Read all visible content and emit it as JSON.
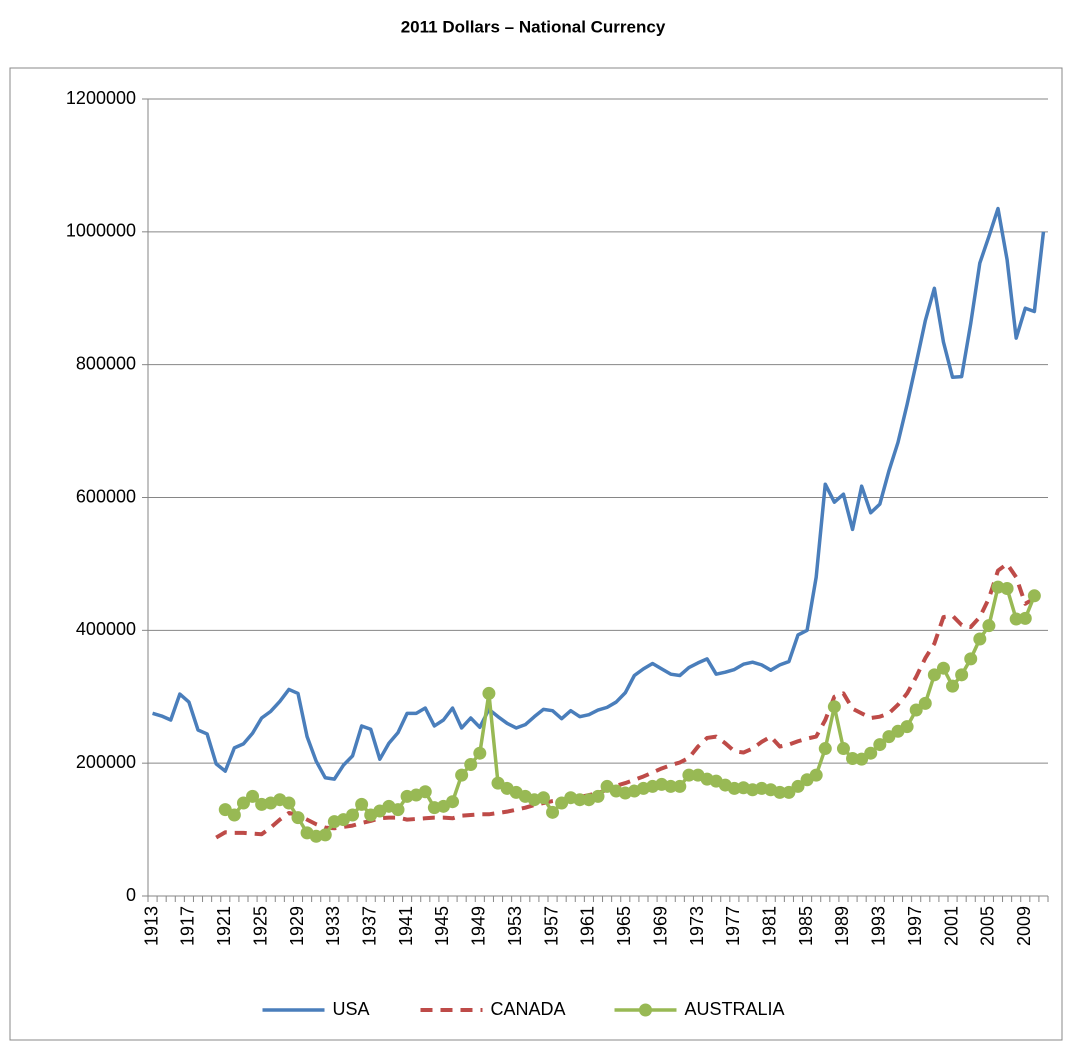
{
  "chart_data": {
    "type": "line",
    "title": "2011 Dollars – National Currency",
    "categories": [
      "1913",
      null,
      null,
      null,
      "1917",
      null,
      null,
      null,
      "1921",
      null,
      null,
      null,
      "1925",
      null,
      null,
      null,
      "1929",
      null,
      null,
      null,
      "1933",
      null,
      null,
      null,
      "1937",
      null,
      null,
      null,
      "1941",
      null,
      null,
      null,
      "1945",
      null,
      null,
      null,
      "1949",
      null,
      null,
      null,
      "1953",
      null,
      null,
      null,
      "1957",
      null,
      null,
      null,
      "1961",
      null,
      null,
      null,
      "1965",
      null,
      null,
      null,
      "1969",
      null,
      null,
      null,
      "1973",
      null,
      null,
      null,
      "1977",
      null,
      null,
      null,
      "1981",
      null,
      null,
      null,
      "1985",
      null,
      null,
      null,
      "1989",
      null,
      null,
      null,
      "1993",
      null,
      null,
      null,
      "1997",
      null,
      null,
      null,
      "2001",
      null,
      null,
      null,
      "2005",
      null,
      null,
      null,
      "2009",
      null,
      null
    ],
    "series": [
      {
        "name": "USA",
        "color": "#4a7ebb",
        "dash": false,
        "marker": false,
        "values": [
          275000,
          271000,
          265000,
          304000,
          292000,
          250000,
          244000,
          199000,
          188000,
          223000,
          229000,
          245000,
          268000,
          278000,
          293000,
          311000,
          305000,
          240000,
          203000,
          178000,
          176000,
          197000,
          211000,
          256000,
          251000,
          206000,
          230000,
          246000,
          275000,
          275000,
          283000,
          256000,
          265000,
          283000,
          253000,
          268000,
          254000,
          281000,
          270000,
          260000,
          253000,
          258000,
          270000,
          281000,
          279000,
          267000,
          279000,
          270000,
          273000,
          280000,
          284000,
          292000,
          306000,
          332000,
          342000,
          350000,
          342000,
          334000,
          332000,
          344000,
          351000,
          357000,
          334000,
          337000,
          341000,
          349000,
          352000,
          348000,
          340000,
          348000,
          353000,
          393000,
          400000,
          480000,
          620000,
          593000,
          605000,
          552000,
          617000,
          577000,
          590000,
          640000,
          683000,
          740000,
          802000,
          866000,
          915000,
          834000,
          781000,
          782000,
          862000,
          953000,
          993000,
          1035000,
          958000,
          840000,
          885000,
          880000,
          1000000
        ]
      },
      {
        "name": "CANADA",
        "color": "#be4b48",
        "dash": true,
        "marker": false,
        "values": [
          null,
          null,
          null,
          null,
          null,
          null,
          null,
          88000,
          96000,
          95000,
          95000,
          94000,
          93000,
          103000,
          115000,
          125000,
          122000,
          115000,
          108000,
          103000,
          102000,
          104000,
          106000,
          110000,
          113000,
          117000,
          118000,
          118000,
          115000,
          116000,
          117000,
          118000,
          118000,
          117000,
          121000,
          122000,
          123000,
          123000,
          125000,
          127000,
          130000,
          133000,
          137000,
          140000,
          143000,
          145000,
          147000,
          149000,
          152000,
          155000,
          160000,
          166000,
          170000,
          175000,
          180000,
          186000,
          192000,
          197000,
          201000,
          208000,
          225000,
          238000,
          240000,
          230000,
          218000,
          216000,
          222000,
          232000,
          240000,
          225000,
          228000,
          233000,
          237000,
          240000,
          265000,
          300000,
          305000,
          282000,
          275000,
          268000,
          270000,
          275000,
          288000,
          305000,
          330000,
          358000,
          380000,
          420000,
          422000,
          408000,
          405000,
          420000,
          448000,
          490000,
          500000,
          480000,
          440000,
          448000,
          null
        ]
      },
      {
        "name": "AUSTRALIA",
        "color": "#98b954",
        "dash": false,
        "marker": true,
        "values": [
          null,
          null,
          null,
          null,
          null,
          null,
          null,
          null,
          130000,
          122000,
          140000,
          150000,
          138000,
          140000,
          145000,
          140000,
          118000,
          95000,
          90000,
          92000,
          112000,
          115000,
          122000,
          138000,
          122000,
          128000,
          135000,
          130000,
          150000,
          152000,
          157000,
          133000,
          135000,
          142000,
          182000,
          198000,
          215000,
          305000,
          170000,
          162000,
          156000,
          150000,
          145000,
          148000,
          126000,
          140000,
          148000,
          145000,
          145000,
          150000,
          165000,
          158000,
          155000,
          158000,
          162000,
          165000,
          168000,
          165000,
          165000,
          182000,
          182000,
          176000,
          173000,
          167000,
          162000,
          163000,
          160000,
          162000,
          160000,
          156000,
          156000,
          165000,
          175000,
          182000,
          222000,
          285000,
          222000,
          207000,
          206000,
          215000,
          228000,
          240000,
          248000,
          255000,
          280000,
          290000,
          333000,
          343000,
          316000,
          333000,
          357000,
          387000,
          407000,
          465000,
          463000,
          417000,
          418000,
          452000,
          null
        ]
      }
    ],
    "ylim": [
      0,
      1200000
    ],
    "yticks": [
      0,
      200000,
      400000,
      600000,
      800000,
      1000000,
      1200000
    ],
    "grid": true,
    "legend": "bottom"
  }
}
